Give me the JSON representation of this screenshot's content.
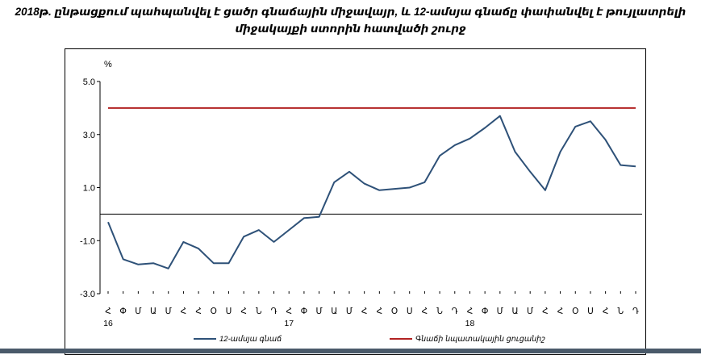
{
  "chart_data": {
    "type": "line",
    "title_line1": "2018թ. ընթացքում պահպանվել է ցածր գնաճային միջավայր, և 12-ամսյա գնաճը փափանվել է թույլատրելի",
    "title_line2": "միջակայքի ստորին հատվածի շուրջ",
    "ylabel": "%",
    "ylim": [
      -3.0,
      5.0
    ],
    "yticks": [
      "5.0",
      "3.0",
      "1.0",
      "-1.0",
      "-3.0"
    ],
    "categories": [
      "Հ",
      "Փ",
      "Մ",
      "Ա",
      "Մ",
      "Հ",
      "Հ",
      "Օ",
      "Ս",
      "Հ",
      "Ն",
      "Դ",
      "Հ",
      "Փ",
      "Մ",
      "Ա",
      "Մ",
      "Հ",
      "Հ",
      "Օ",
      "Ս",
      "Հ",
      "Ն",
      "Դ",
      "Հ",
      "Փ",
      "Մ",
      "Ա",
      "Մ",
      "Հ",
      "Հ",
      "Օ",
      "Ս",
      "Հ",
      "Ն",
      "Դ"
    ],
    "years": [
      {
        "label": "16",
        "index": 0
      },
      {
        "label": "17",
        "index": 12
      },
      {
        "label": "18",
        "index": 24
      }
    ],
    "series": [
      {
        "name": "12-ամսյա գնաճ",
        "color": "#2e5178",
        "values": [
          -0.3,
          -1.7,
          -1.9,
          -1.85,
          -2.05,
          -1.05,
          -1.3,
          -1.85,
          -1.85,
          -0.85,
          -0.6,
          -1.05,
          -0.6,
          -0.15,
          -0.1,
          1.2,
          1.6,
          1.15,
          0.9,
          0.95,
          1.0,
          1.2,
          2.2,
          2.6,
          2.85,
          3.25,
          3.7,
          2.35,
          1.6,
          0.9,
          2.35,
          3.3,
          3.5,
          2.8,
          1.85,
          1.8
        ]
      },
      {
        "name": "Գնաճի նպատակային ցուցանիշ",
        "color": "#b22222",
        "values": [
          4.0,
          4.0,
          4.0,
          4.0,
          4.0,
          4.0,
          4.0,
          4.0,
          4.0,
          4.0,
          4.0,
          4.0,
          4.0,
          4.0,
          4.0,
          4.0,
          4.0,
          4.0,
          4.0,
          4.0,
          4.0,
          4.0,
          4.0,
          4.0,
          4.0,
          4.0,
          4.0,
          4.0,
          4.0,
          4.0,
          4.0,
          4.0,
          4.0,
          4.0,
          4.0,
          4.0
        ]
      }
    ]
  }
}
